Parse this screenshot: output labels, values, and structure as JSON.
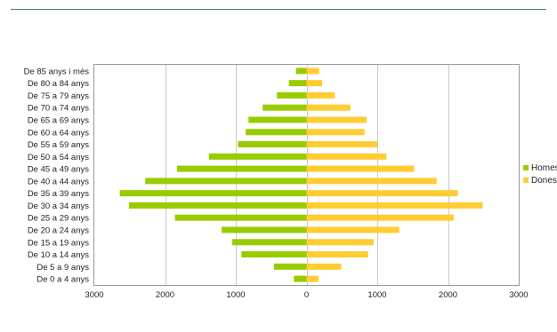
{
  "chart_data": {
    "type": "bar",
    "orientation": "horizontal",
    "layout": "population-pyramid",
    "title": "",
    "xlabel": "",
    "ylabel": "",
    "categories": [
      "De 85 anys i més",
      "De 80 a 84 anys",
      "De 75 a 79 anys",
      "De 70 a 74 anys",
      "De 65 a 69 anys",
      "De 60 a 64 anys",
      "De 55 a 59 anys",
      "De 50 a 54 anys",
      "De 45 a 49 anys",
      "De 40 a 44 anys",
      "De 35 a 39 anys",
      "De 30 a 34 anys",
      "De 25 a 29 anys",
      "De 20 a 24 anys",
      "De 15 a 19 anys",
      "De 10 a 14 anys",
      "De 5 a 9 anys",
      "De 0 a 4 anys"
    ],
    "series": [
      {
        "name": "Homes",
        "color": "#99cc00",
        "values": [
          150,
          250,
          420,
          620,
          820,
          860,
          970,
          1380,
          1830,
          2280,
          2640,
          2510,
          1860,
          1200,
          1050,
          920,
          460,
          180
        ]
      },
      {
        "name": "Dones",
        "color": "#ffcc33",
        "values": [
          180,
          220,
          400,
          620,
          850,
          820,
          1000,
          1130,
          1520,
          1840,
          2140,
          2490,
          2080,
          1310,
          950,
          870,
          490,
          170
        ]
      }
    ],
    "xlim": [
      -3000,
      3000
    ],
    "xticks": [
      {
        "value": -3000,
        "label": "3000"
      },
      {
        "value": -2000,
        "label": "2000"
      },
      {
        "value": -1000,
        "label": "1000"
      },
      {
        "value": 0,
        "label": "0"
      },
      {
        "value": 1000,
        "label": "1000"
      },
      {
        "value": 2000,
        "label": "2000"
      },
      {
        "value": 3000,
        "label": "3000"
      }
    ],
    "grid": true,
    "legend": "right"
  }
}
